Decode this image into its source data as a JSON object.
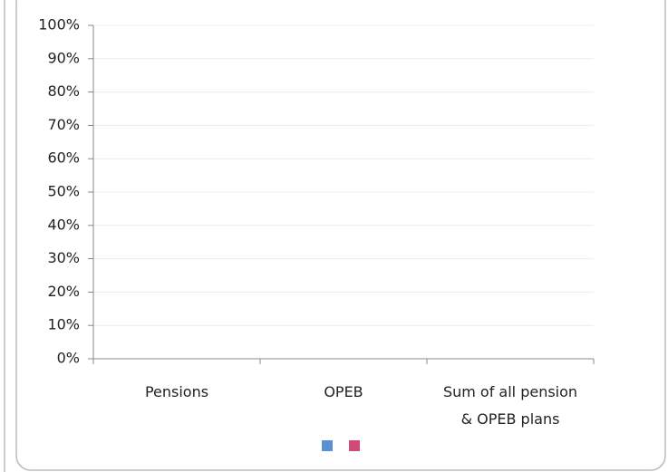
{
  "chart_data": {
    "type": "bar",
    "categories": [
      "Pensions",
      "OPEB",
      "Sum of all pension & OPEB plans"
    ],
    "series": [
      {
        "color": "#5b8fd4",
        "values": [
          0,
          0,
          0
        ]
      },
      {
        "color": "#d04a7a",
        "values": [
          0,
          0,
          0
        ]
      }
    ],
    "ylim": [
      0,
      100
    ],
    "yticks": [
      {
        "value": 0,
        "label": "0%"
      },
      {
        "value": 10,
        "label": "10%"
      },
      {
        "value": 20,
        "label": "20%"
      },
      {
        "value": 30,
        "label": "30%"
      },
      {
        "value": 40,
        "label": "40%"
      },
      {
        "value": 50,
        "label": "50%"
      },
      {
        "value": 60,
        "label": "60%"
      },
      {
        "value": 70,
        "label": "70%"
      },
      {
        "value": 80,
        "label": "80%"
      },
      {
        "value": 90,
        "label": "90%"
      },
      {
        "value": 100,
        "label": "100%"
      }
    ],
    "grid": true,
    "legend": "bottom"
  }
}
